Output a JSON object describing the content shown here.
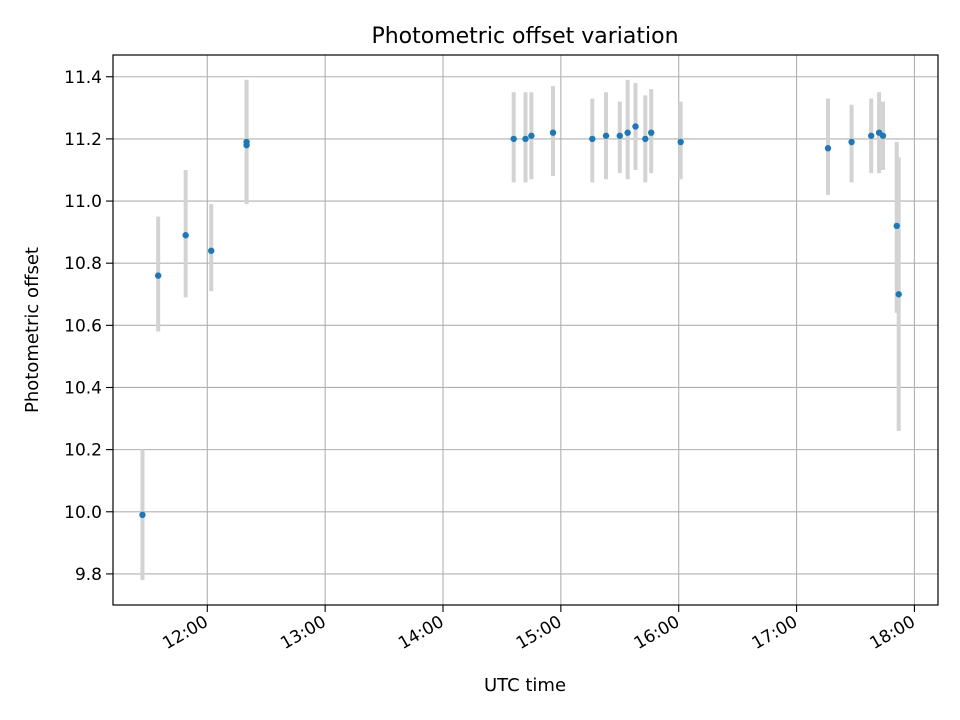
{
  "chart_data": {
    "type": "scatter",
    "title": "Photometric offset variation",
    "xlabel": "UTC time",
    "ylabel": "Photometric offset",
    "x_unit": "UTC time (HH:MM)",
    "xlim": [
      "11:12",
      "18:12"
    ],
    "ylim": [
      9.7,
      11.47
    ],
    "xticks": [
      "12:00",
      "13:00",
      "14:00",
      "15:00",
      "16:00",
      "17:00",
      "18:00"
    ],
    "yticks": [
      "9.8",
      "10.0",
      "10.2",
      "10.4",
      "10.6",
      "10.8",
      "11.0",
      "11.2",
      "11.4"
    ],
    "grid": true,
    "marker_color": "#1f77b4",
    "errorbar_color": "#d3d3d3",
    "points": [
      {
        "t": "11:27",
        "y": 9.99,
        "lo": 9.78,
        "hi": 10.2
      },
      {
        "t": "11:35",
        "y": 10.76,
        "lo": 10.58,
        "hi": 10.95
      },
      {
        "t": "11:49",
        "y": 10.89,
        "lo": 10.69,
        "hi": 11.1
      },
      {
        "t": "12:02",
        "y": 10.84,
        "lo": 10.71,
        "hi": 10.99
      },
      {
        "t": "12:20",
        "y": 11.18,
        "lo": 10.99,
        "hi": 11.39
      },
      {
        "t": "12:20",
        "y": 11.19,
        "lo": 10.99,
        "hi": 11.39
      },
      {
        "t": "14:36",
        "y": 11.2,
        "lo": 11.06,
        "hi": 11.35
      },
      {
        "t": "14:42",
        "y": 11.2,
        "lo": 11.06,
        "hi": 11.35
      },
      {
        "t": "14:45",
        "y": 11.21,
        "lo": 11.07,
        "hi": 11.35
      },
      {
        "t": "14:56",
        "y": 11.22,
        "lo": 11.08,
        "hi": 11.37
      },
      {
        "t": "15:16",
        "y": 11.2,
        "lo": 11.06,
        "hi": 11.33
      },
      {
        "t": "15:23",
        "y": 11.21,
        "lo": 11.07,
        "hi": 11.35
      },
      {
        "t": "15:30",
        "y": 11.21,
        "lo": 11.09,
        "hi": 11.32
      },
      {
        "t": "15:34",
        "y": 11.22,
        "lo": 11.07,
        "hi": 11.39
      },
      {
        "t": "15:38",
        "y": 11.24,
        "lo": 11.1,
        "hi": 11.38
      },
      {
        "t": "15:43",
        "y": 11.2,
        "lo": 11.06,
        "hi": 11.34
      },
      {
        "t": "15:46",
        "y": 11.22,
        "lo": 11.09,
        "hi": 11.36
      },
      {
        "t": "16:01",
        "y": 11.19,
        "lo": 11.07,
        "hi": 11.32
      },
      {
        "t": "17:16",
        "y": 11.17,
        "lo": 11.02,
        "hi": 11.33
      },
      {
        "t": "17:28",
        "y": 11.19,
        "lo": 11.06,
        "hi": 11.31
      },
      {
        "t": "17:38",
        "y": 11.21,
        "lo": 11.09,
        "hi": 11.33
      },
      {
        "t": "17:42",
        "y": 11.22,
        "lo": 11.09,
        "hi": 11.35
      },
      {
        "t": "17:44",
        "y": 11.21,
        "lo": 11.1,
        "hi": 11.32
      },
      {
        "t": "17:51",
        "y": 10.92,
        "lo": 10.64,
        "hi": 11.19
      },
      {
        "t": "17:52",
        "y": 10.7,
        "lo": 10.26,
        "hi": 11.14
      }
    ]
  }
}
